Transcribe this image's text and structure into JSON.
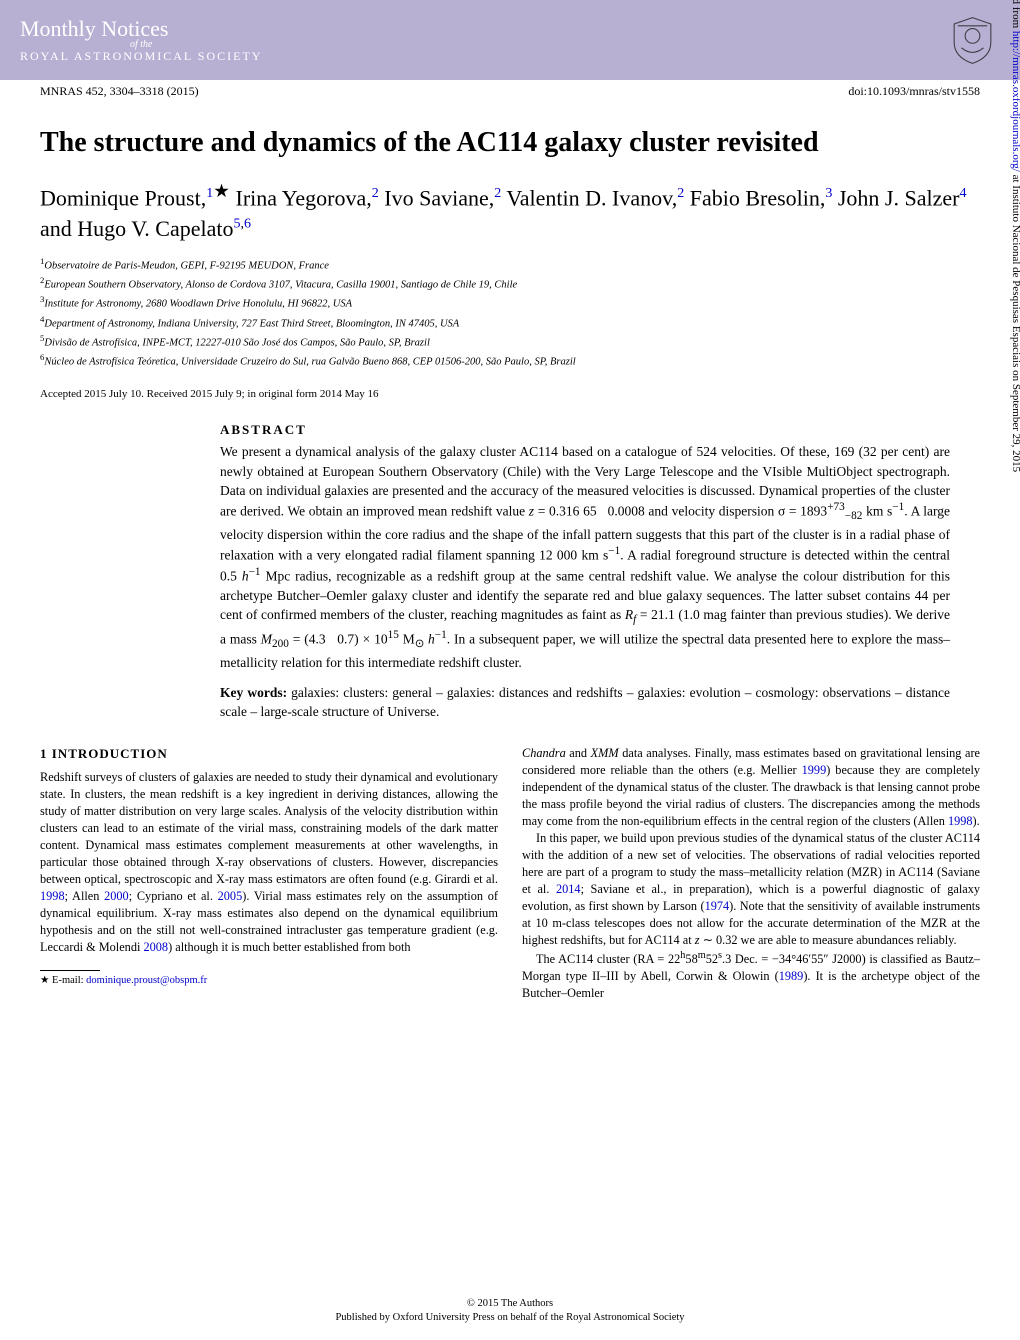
{
  "banner": {
    "journal_main": "Monthly Notices",
    "journal_sub": "of the",
    "journal_society": "ROYAL ASTRONOMICAL SOCIETY",
    "bg_color": "#b7b0d3",
    "text_color": "#ffffff"
  },
  "citation": {
    "left": "MNRAS 452, 3304–3318 (2015)",
    "right": "doi:10.1093/mnras/stv1558"
  },
  "title": "The structure and dynamics of the AC114 galaxy cluster revisited",
  "authors_html": "Dominique Proust,<sup><a class='bluelink'>1</a></sup><span class='star'>★</span> Irina Yegorova,<sup><a class='bluelink'>2</a></sup> Ivo Saviane,<sup><a class='bluelink'>2</a></sup> Valentin D. Ivanov,<sup><a class='bluelink'>2</a></sup> Fabio Bresolin,<sup><a class='bluelink'>3</a></sup> John J. Salzer<sup><a class='bluelink'>4</a></sup> and Hugo V. Capelato<sup><a class='bluelink'>5</a>,<a class='bluelink'>6</a></sup>",
  "affiliations": [
    "<sup>1</sup>Observatoire de Paris-Meudon, GEPI, F-92195 MEUDON, France",
    "<sup>2</sup>European Southern Observatory, Alonso de Cordova 3107, Vitacura, Casilla 19001, Santiago de Chile 19, Chile",
    "<sup>3</sup>Institute for Astronomy, 2680 Woodlawn Drive Honolulu, HI 96822, USA",
    "<sup>4</sup>Department of Astronomy, Indiana University, 727 East Third Street, Bloomington, IN 47405, USA",
    "<sup>5</sup>Divisão de Astrofísica, INPE-MCT, 12227-010 São José dos Campos, São Paulo, SP, Brazil",
    "<sup>6</sup>Núcleo de Astrofísica Teóretica, Universidade Cruzeiro do Sul, rua Galvão Bueno 868, CEP 01506-200, São Paulo, SP, Brazil"
  ],
  "accepted": "Accepted 2015 July 10. Received 2015 July 9; in original form 2014 May 16",
  "abstract": {
    "heading": "ABSTRACT",
    "body": "We present a dynamical analysis of the galaxy cluster AC114 based on a catalogue of 524 velocities. Of these, 169 (32 per cent) are newly obtained at European Southern Observatory (Chile) with the Very Large Telescope and the VIsible MultiObject spectrograph. Data on individual galaxies are presented and the accuracy of the measured velocities is discussed. Dynamical properties of the cluster are derived. We obtain an improved mean redshift value <i>z</i> = 0.316 65 &nbsp; 0.0008 and velocity dispersion σ = 1893<sup>+73</sup><sub>−82</sub> km s<sup>−1</sup>. A large velocity dispersion within the core radius and the shape of the infall pattern suggests that this part of the cluster is in a radial phase of relaxation with a very elongated radial filament spanning 12 000 km s<sup>−1</sup>. A radial foreground structure is detected within the central 0.5 <i>h</i><sup>−1</sup> Mpc radius, recognizable as a redshift group at the same central redshift value. We analyse the colour distribution for this archetype Butcher–Oemler galaxy cluster and identify the separate red and blue galaxy sequences. The latter subset contains 44 per cent of confirmed members of the cluster, reaching magnitudes as faint as <i>R<sub>f</sub></i> = 21.1 (1.0 mag fainter than previous studies). We derive a mass <i>M</i><sub>200</sub> = (4.3 &nbsp; 0.7) × 10<sup>15</sup> M<sub>⊙</sub> <i>h</i><sup>−1</sup>. In a subsequent paper, we will utilize the spectral data presented here to explore the mass–metallicity relation for this intermediate redshift cluster.",
    "keywords": "<b>Key words:</b> galaxies: clusters: general – galaxies: distances and redshifts – galaxies: evolution – cosmology: observations – distance scale – large-scale structure of Universe."
  },
  "section1": {
    "heading": "1 INTRODUCTION",
    "p1": "Redshift surveys of clusters of galaxies are needed to study their dynamical and evolutionary state. In clusters, the mean redshift is a key ingredient in deriving distances, allowing the study of matter distribution on very large scales. Analysis of the velocity distribution within clusters can lead to an estimate of the virial mass, constraining models of the dark matter content. Dynamical mass estimates complement measurements at other wavelengths, in particular those obtained through X-ray observations of clusters. However, discrepancies between optical, spectroscopic and X-ray mass estimators are often found (e.g. Girardi et al. <span class='bluelink'>1998</span>; Allen <span class='bluelink'>2000</span>; Cypriano et al. <span class='bluelink'>2005</span>). Virial mass estimates rely on the assumption of dynamical equilibrium. X-ray mass estimates also depend on the dynamical equilibrium hypothesis and on the still not well-constrained intracluster gas temperature gradient (e.g. Leccardi & Molendi <span class='bluelink'>2008</span>) although it is much better established from both",
    "p2": "<i>Chandra</i> and <i>XMM</i> data analyses. Finally, mass estimates based on gravitational lensing are considered more reliable than the others (e.g. Mellier <span class='bluelink'>1999</span>) because they are completely independent of the dynamical status of the cluster. The drawback is that lensing cannot probe the mass profile beyond the virial radius of clusters. The discrepancies among the methods may come from the non-equilibrium effects in the central region of the clusters (Allen <span class='bluelink'>1998</span>).",
    "p3": "In this paper, we build upon previous studies of the dynamical status of the cluster AC114 with the addition of a new set of velocities. The observations of radial velocities reported here are part of a program to study the mass–metallicity relation (MZR) in AC114 (Saviane et al. <span class='bluelink'>2014</span>; Saviane et al., in preparation), which is a powerful diagnostic of galaxy evolution, as first shown by Larson (<span class='bluelink'>1974</span>). Note that the sensitivity of available instruments at 10 m-class telescopes does not allow for the accurate determination of the MZR at the highest redshifts, but for AC114 at <i>z</i> ∼ 0.32 we are able to measure abundances reliably.",
    "p4": "The AC114 cluster (RA = 22<sup>h</sup>58<sup>m</sup>52<sup>s</sup>.3 Dec. = −34°46′55″ J2000) is classified as Bautz–Morgan type II–III by Abell, Corwin & Olowin (<span class='bluelink'>1989</span>). It is the archetype object of the Butcher–Oemler"
  },
  "footnote": {
    "star": "★",
    "text": " E-mail: ",
    "email": "dominique.proust@obspm.fr"
  },
  "footer": {
    "line1": "© 2015 The Authors",
    "line2": "Published by Oxford University Press on behalf of the Royal Astronomical Society"
  },
  "sidebar": {
    "pre": "Downloaded from ",
    "url": "http://mnras.oxfordjournals.org/",
    "post": " at Instituto Nacional de Pesquisas Espaciais on September 29, 2015"
  }
}
